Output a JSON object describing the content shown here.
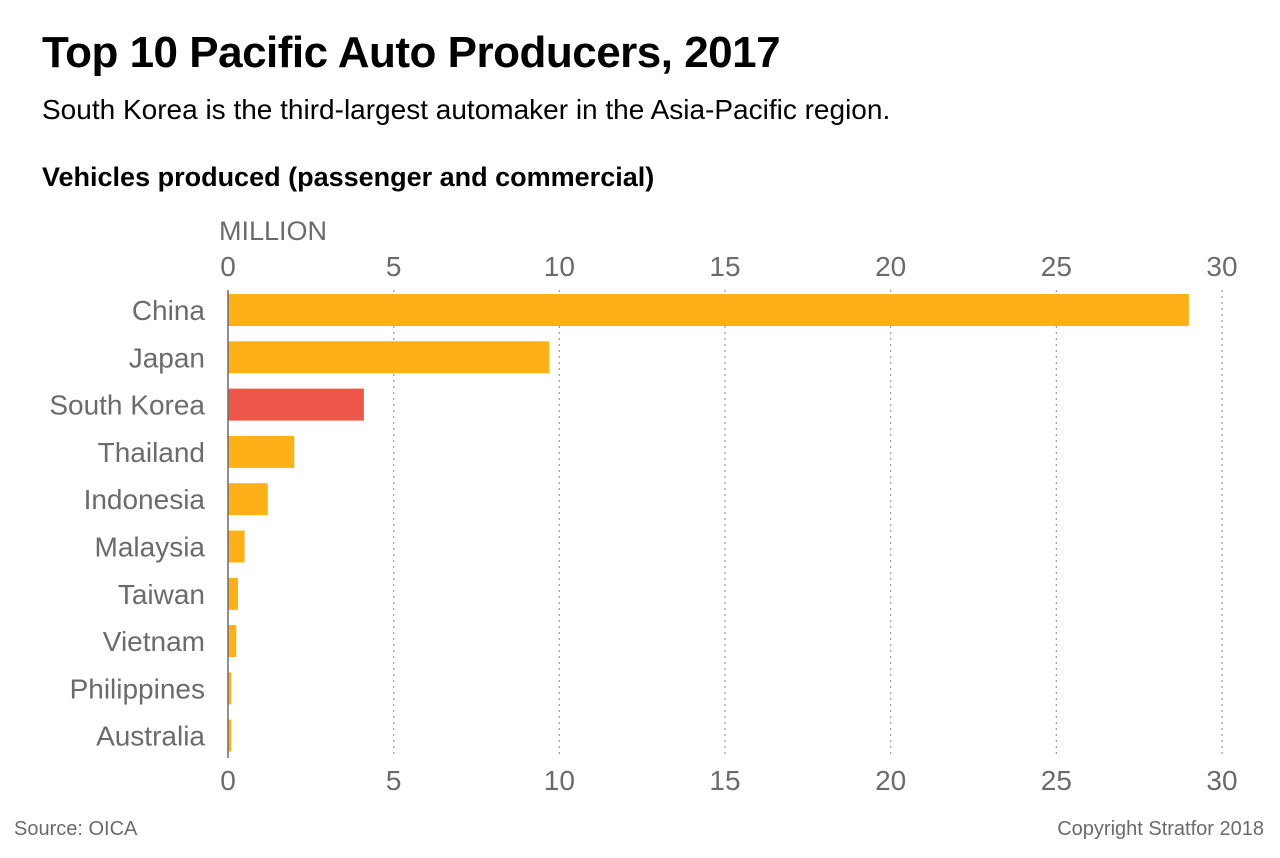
{
  "header": {
    "title": "Top 10 Pacific Auto Producers, 2017",
    "subtitle": "South Korea is the third-largest automaker in the Asia-Pacific region.",
    "chart_heading": "Vehicles produced (passenger and commercial)"
  },
  "footer": {
    "source": "Source: OICA",
    "copyright": "Copyright Stratfor 2018"
  },
  "colors": {
    "default_bar": "#fdb017",
    "highlight_bar": "#ee564a",
    "gridline": "#9a9a9a",
    "axis_text": "#6b6b6b"
  },
  "chart_data": {
    "type": "bar",
    "orientation": "horizontal",
    "title": "Top 10 Pacific Auto Producers, 2017",
    "subtitle": "South Korea is the third-largest automaker in the Asia-Pacific region.",
    "heading": "Vehicles produced (passenger and commercial)",
    "unit_label": "MILLION",
    "categories": [
      "China",
      "Japan",
      "South Korea",
      "Thailand",
      "Indonesia",
      "Malaysia",
      "Taiwan",
      "Vietnam",
      "Philippines",
      "Australia"
    ],
    "values": [
      29.0,
      9.7,
      4.1,
      2.0,
      1.2,
      0.5,
      0.3,
      0.25,
      0.1,
      0.1
    ],
    "highlight": [
      "South Korea"
    ],
    "xlim": [
      0,
      30
    ],
    "xticks": [
      0,
      5,
      10,
      15,
      20,
      25,
      30
    ],
    "tick_labels_top": true,
    "tick_labels_bottom": true,
    "grid": "vertical dotted"
  }
}
